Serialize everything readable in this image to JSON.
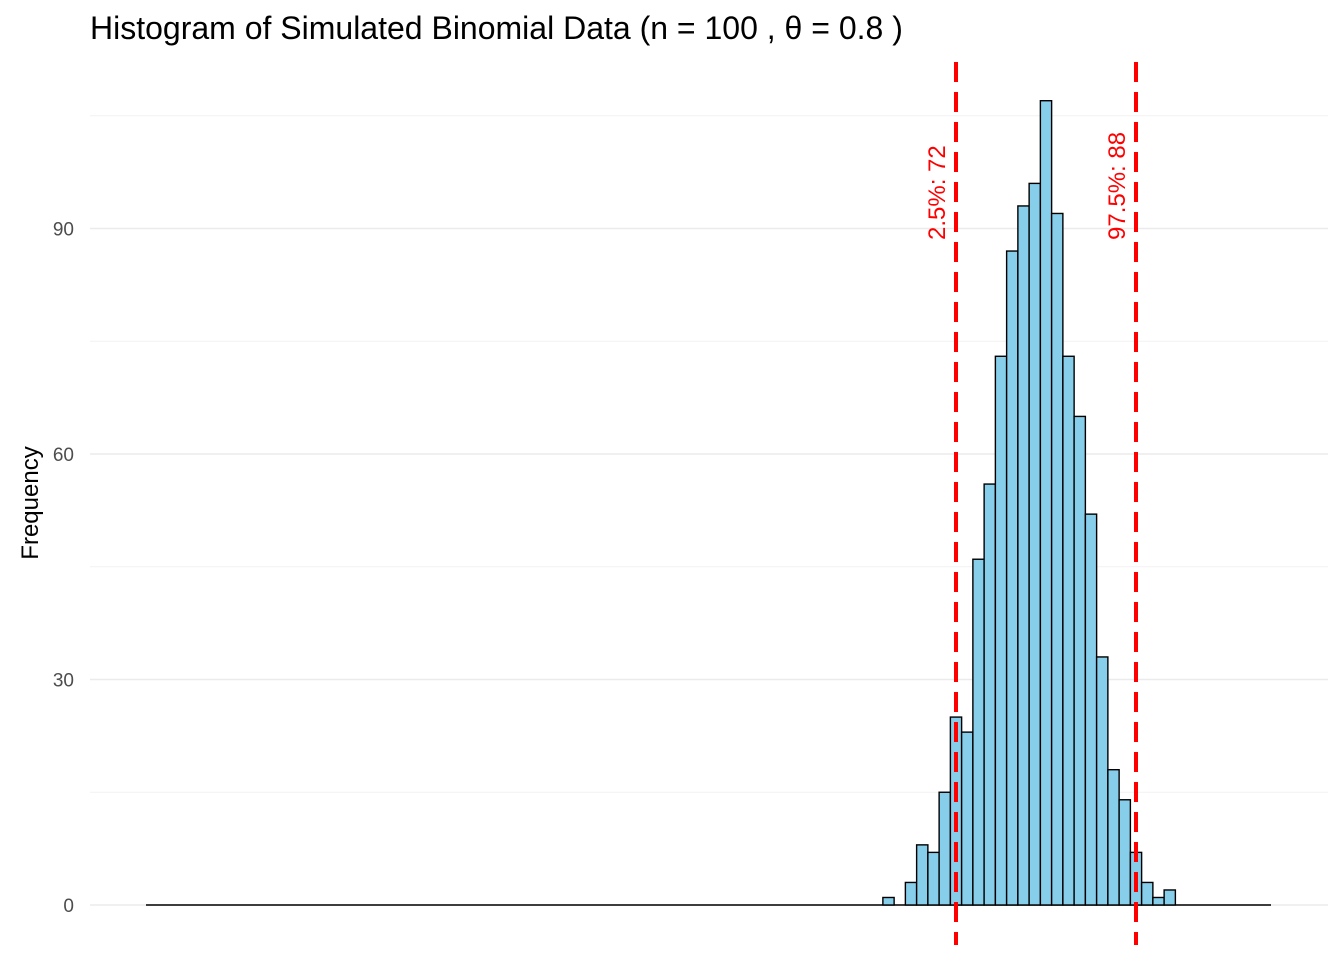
{
  "chart_data": {
    "type": "bar",
    "title": "Histogram of Simulated Binomial Data (n = 100 , θ = 0.8 )",
    "xlabel": "",
    "ylabel": "Frequency",
    "bar_fill": "#87CEEB",
    "bar_stroke": "#000000",
    "ref_line_color": "#FF0000",
    "xlim": [
      0,
      100
    ],
    "ylim": [
      0,
      112
    ],
    "yticks": [
      0,
      30,
      60,
      90
    ],
    "grid": true,
    "bins": [
      {
        "x": 66,
        "count": 1
      },
      {
        "x": 67,
        "count": 0
      },
      {
        "x": 68,
        "count": 3
      },
      {
        "x": 69,
        "count": 8
      },
      {
        "x": 70,
        "count": 7
      },
      {
        "x": 71,
        "count": 15
      },
      {
        "x": 72,
        "count": 25
      },
      {
        "x": 73,
        "count": 23
      },
      {
        "x": 74,
        "count": 46
      },
      {
        "x": 75,
        "count": 56
      },
      {
        "x": 76,
        "count": 73
      },
      {
        "x": 77,
        "count": 87
      },
      {
        "x": 78,
        "count": 93
      },
      {
        "x": 79,
        "count": 96
      },
      {
        "x": 80,
        "count": 107
      },
      {
        "x": 81,
        "count": 92
      },
      {
        "x": 82,
        "count": 73
      },
      {
        "x": 83,
        "count": 65
      },
      {
        "x": 84,
        "count": 52
      },
      {
        "x": 85,
        "count": 33
      },
      {
        "x": 86,
        "count": 18
      },
      {
        "x": 87,
        "count": 14
      },
      {
        "x": 88,
        "count": 7
      },
      {
        "x": 89,
        "count": 3
      },
      {
        "x": 90,
        "count": 1
      },
      {
        "x": 91,
        "count": 2
      }
    ],
    "reference_lines": [
      {
        "x": 72,
        "label": "2.5%: 72"
      },
      {
        "x": 88,
        "label": "97.5%: 88"
      }
    ]
  }
}
